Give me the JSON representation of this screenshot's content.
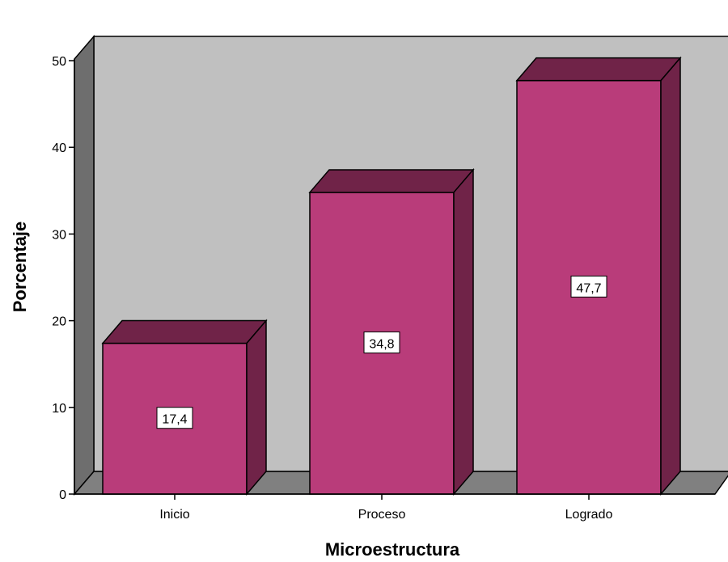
{
  "chart_data": {
    "type": "bar",
    "style": "3d",
    "categories": [
      "Inicio",
      "Proceso",
      "Logrado"
    ],
    "values": [
      17.4,
      34.8,
      47.7
    ],
    "data_labels": [
      "17,4",
      "34,8",
      "47,7"
    ],
    "xlabel": "Microestructura",
    "ylabel": "Porcentaje",
    "ylim": [
      0,
      50
    ],
    "yticks": [
      0,
      10,
      20,
      30,
      40,
      50
    ],
    "grid": false,
    "legend": "none"
  },
  "colors": {
    "bar_front": "#b93c7a",
    "bar_top": "#702348",
    "bar_side": "#702348",
    "back_wall": "#c0c0c0",
    "floor": "#808080",
    "left_wall": "#6e6e6e",
    "outline": "#000000"
  }
}
